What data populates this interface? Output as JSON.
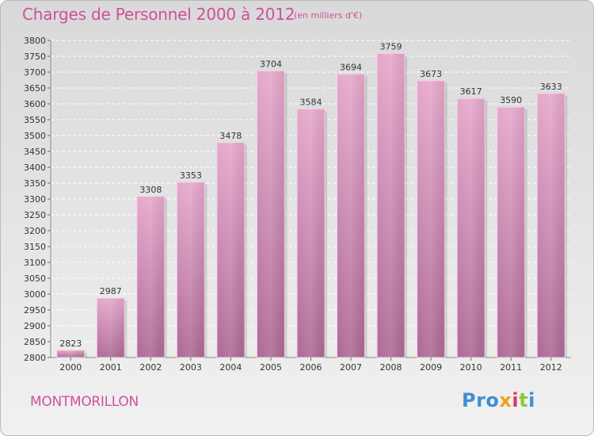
{
  "title": "Charges de Personnel 2000 à 2012",
  "subtitle": "(en milliers d'€)",
  "location": "MONTMORILLON",
  "logo": {
    "part1": "Pro",
    "part2": "x",
    "part3": "i",
    "part4": "t",
    "part5": "i"
  },
  "colors": {
    "title": "#d0509a",
    "bar_top": "#e6a8cc",
    "bar_bottom": "#ad6a96"
  },
  "chart_data": {
    "type": "bar",
    "categories": [
      "2000",
      "2001",
      "2002",
      "2003",
      "2004",
      "2005",
      "2006",
      "2007",
      "2008",
      "2009",
      "2010",
      "2011",
      "2012"
    ],
    "values": [
      2823,
      2987,
      3308,
      3353,
      3478,
      3704,
      3584,
      3694,
      3759,
      3673,
      3617,
      3590,
      3633
    ],
    "title": "Charges de Personnel 2000 à 2012",
    "ylim": [
      2800,
      3800
    ],
    "yticks": [
      2800,
      2850,
      2900,
      2950,
      3000,
      3050,
      3100,
      3150,
      3200,
      3250,
      3300,
      3350,
      3400,
      3450,
      3500,
      3550,
      3600,
      3650,
      3700,
      3750,
      3800
    ],
    "grid": true
  }
}
